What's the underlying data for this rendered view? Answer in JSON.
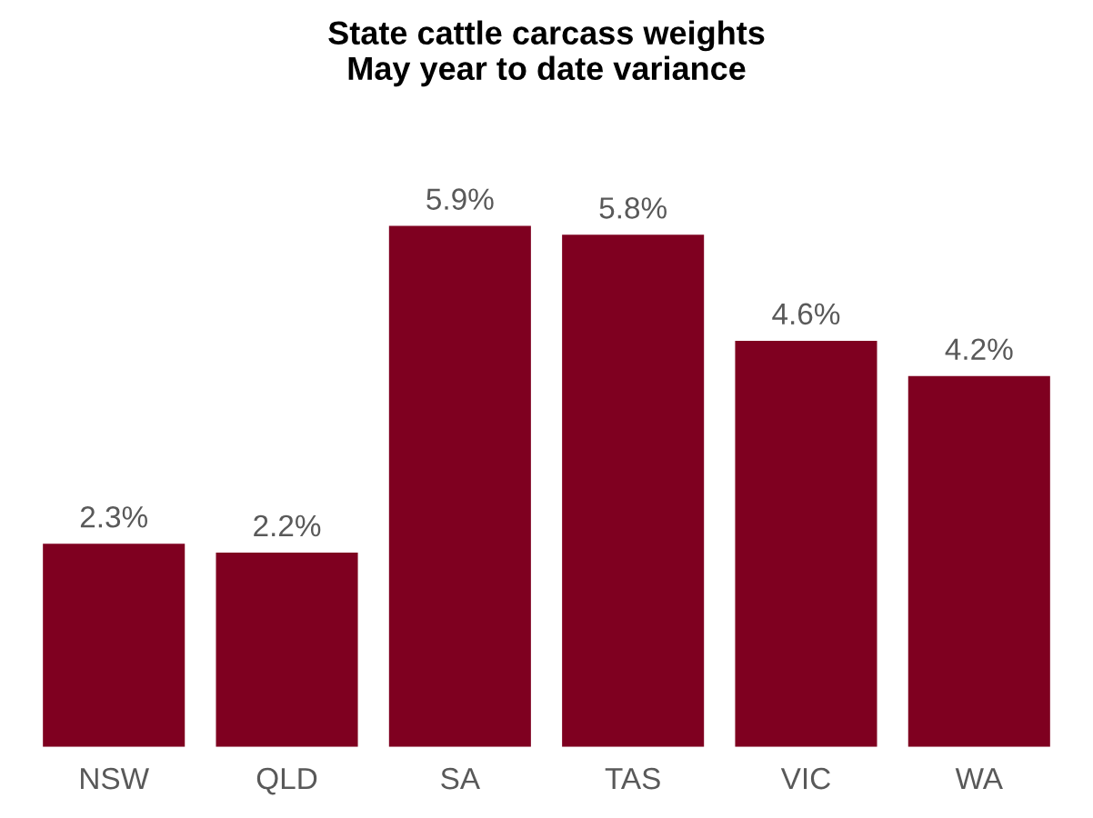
{
  "chart_data": {
    "type": "bar",
    "title": "State cattle carcass weights\nMay year to date variance",
    "categories": [
      "NSW",
      "QLD",
      "SA",
      "TAS",
      "VIC",
      "WA"
    ],
    "values": [
      2.3,
      2.2,
      5.9,
      5.8,
      4.6,
      4.2
    ],
    "value_labels": [
      "2.3%",
      "2.2%",
      "5.9%",
      "5.8%",
      "4.6%",
      "4.2%"
    ],
    "color": "#7f0020",
    "tick_labels": "x",
    "grid": false,
    "legend": false
  }
}
